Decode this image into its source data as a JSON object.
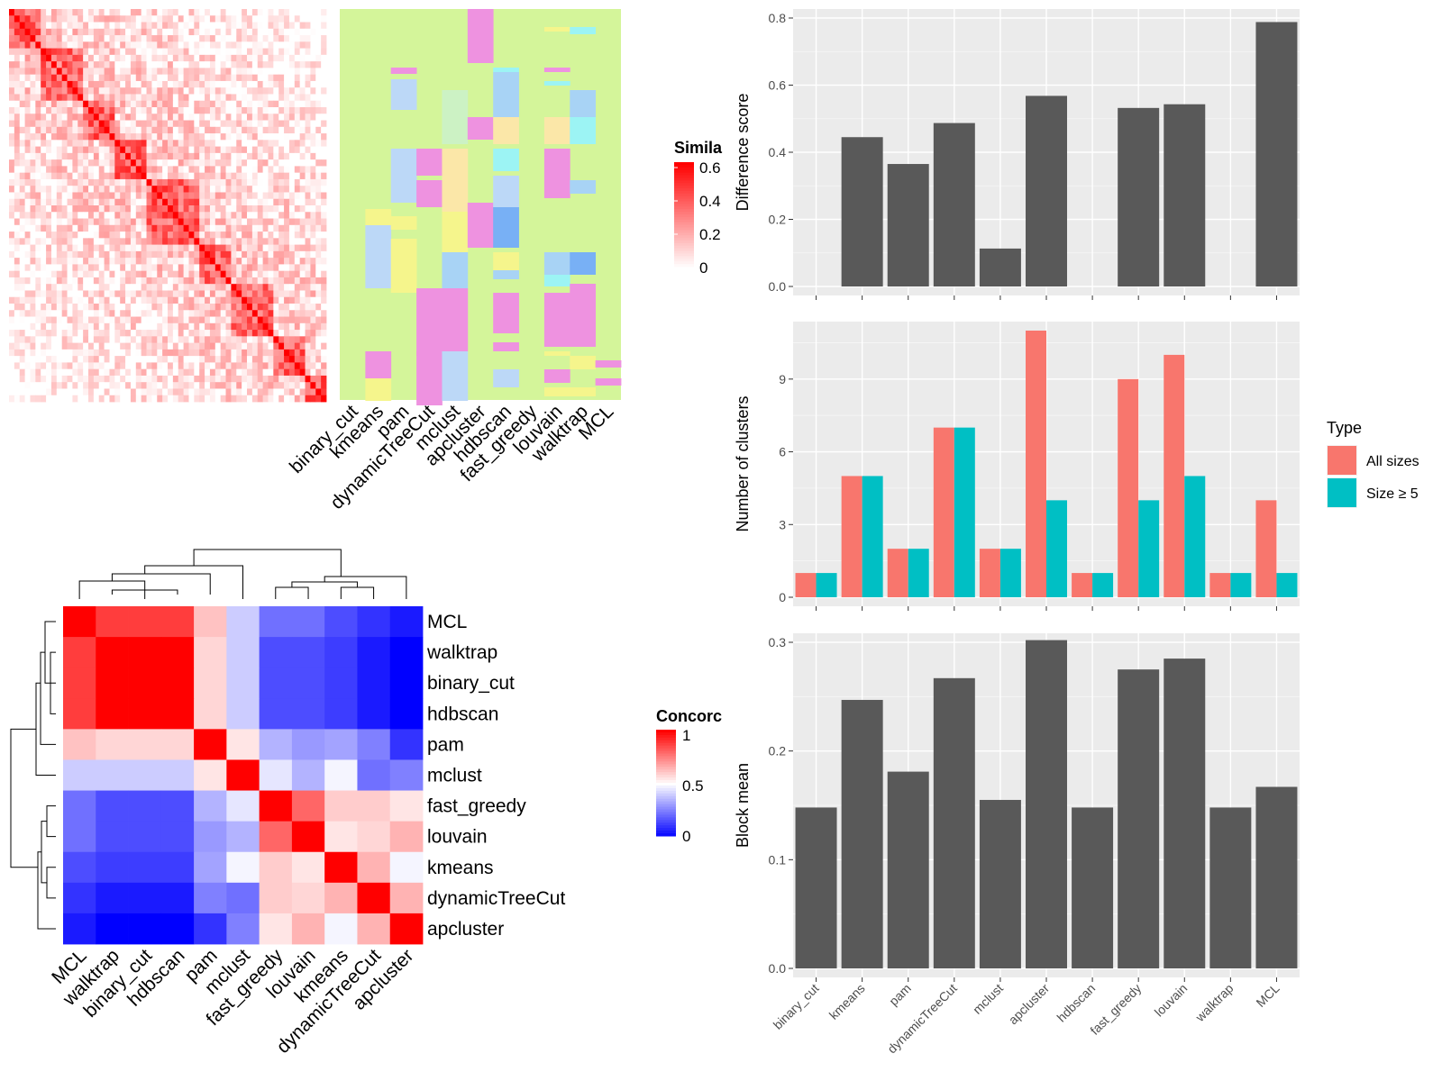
{
  "methods": [
    "binary_cut",
    "kmeans",
    "pam",
    "dynamicTreeCut",
    "mclust",
    "apcluster",
    "hdbscan",
    "fast_greedy",
    "louvain",
    "walktrap",
    "MCL"
  ],
  "colors": {
    "bar_dark": "#595959",
    "panel_bg": "#ebebeb",
    "grid": "#ffffff",
    "all_sizes": "#F8766D",
    "size_ge5": "#00BFC4",
    "heat_high": "#ff0000",
    "heat_mid": "#ffffff",
    "heat_low": "#0000ff",
    "class_bg": "#d4f59a"
  },
  "similarity_heatmap": {
    "legend_title": "Simila",
    "legend_ticks": [
      "0.6",
      "0.4",
      "0.2",
      "0"
    ],
    "n": 60
  },
  "class_heatmap": {
    "columns": [
      "binary_cut",
      "kmeans",
      "pam",
      "dynamicTreeCut",
      "mclust",
      "apcluster",
      "hdbscan",
      "fast_greedy",
      "louvain",
      "walktrap",
      "MCL"
    ]
  },
  "concordance_heatmap": {
    "legend_title": "Concorc",
    "legend_ticks": [
      "1",
      "0.5",
      "0"
    ],
    "order": [
      "MCL",
      "walktrap",
      "binary_cut",
      "hdbscan",
      "pam",
      "mclust",
      "fast_greedy",
      "louvain",
      "kmeans",
      "dynamicTreeCut",
      "apcluster"
    ],
    "matrix": [
      [
        1.0,
        0.88,
        0.88,
        0.88,
        0.62,
        0.4,
        0.22,
        0.22,
        0.15,
        0.1,
        0.05
      ],
      [
        0.88,
        1.0,
        1.0,
        1.0,
        0.58,
        0.4,
        0.15,
        0.15,
        0.12,
        0.05,
        0.0
      ],
      [
        0.88,
        1.0,
        1.0,
        1.0,
        0.58,
        0.4,
        0.15,
        0.15,
        0.12,
        0.05,
        0.0
      ],
      [
        0.88,
        1.0,
        1.0,
        1.0,
        0.58,
        0.4,
        0.15,
        0.15,
        0.12,
        0.05,
        0.0
      ],
      [
        0.62,
        0.58,
        0.58,
        0.58,
        1.0,
        0.55,
        0.35,
        0.3,
        0.32,
        0.25,
        0.1
      ],
      [
        0.4,
        0.4,
        0.4,
        0.4,
        0.55,
        1.0,
        0.45,
        0.35,
        0.48,
        0.22,
        0.25
      ],
      [
        0.22,
        0.15,
        0.15,
        0.15,
        0.35,
        0.45,
        1.0,
        0.8,
        0.6,
        0.6,
        0.55
      ],
      [
        0.22,
        0.15,
        0.15,
        0.15,
        0.3,
        0.35,
        0.8,
        1.0,
        0.55,
        0.58,
        0.65
      ],
      [
        0.15,
        0.12,
        0.12,
        0.12,
        0.32,
        0.48,
        0.6,
        0.55,
        1.0,
        0.65,
        0.48
      ],
      [
        0.1,
        0.05,
        0.05,
        0.05,
        0.25,
        0.22,
        0.6,
        0.58,
        0.65,
        1.0,
        0.65
      ],
      [
        0.05,
        0.0,
        0.0,
        0.0,
        0.1,
        0.25,
        0.55,
        0.65,
        0.48,
        0.65,
        1.0
      ]
    ]
  },
  "chart_data": [
    {
      "type": "bar",
      "ylabel": "Difference score",
      "categories": [
        "binary_cut",
        "kmeans",
        "pam",
        "dynamicTreeCut",
        "mclust",
        "apcluster",
        "hdbscan",
        "fast_greedy",
        "louvain",
        "walktrap",
        "MCL"
      ],
      "values": [
        0,
        0.445,
        0.365,
        0.487,
        0.113,
        0.568,
        0,
        0.532,
        0.543,
        0,
        0.788
      ],
      "ylim": [
        0,
        0.8
      ],
      "yticks": [
        "0.0",
        "0.2",
        "0.4",
        "0.6",
        "0.8"
      ],
      "grid": true
    },
    {
      "type": "bar",
      "ylabel": "Number of clusters",
      "categories": [
        "binary_cut",
        "kmeans",
        "pam",
        "dynamicTreeCut",
        "mclust",
        "apcluster",
        "hdbscan",
        "fast_greedy",
        "louvain",
        "walktrap",
        "MCL"
      ],
      "series": [
        {
          "name": "All sizes",
          "values": [
            1,
            5,
            2,
            7,
            2,
            11,
            1,
            9,
            10,
            1,
            4
          ]
        },
        {
          "name": "Size ≥ 5",
          "values": [
            1,
            5,
            2,
            7,
            2,
            4,
            1,
            4,
            5,
            1,
            1
          ]
        }
      ],
      "ylim": [
        0,
        11
      ],
      "yticks": [
        "0",
        "3",
        "6",
        "9"
      ],
      "legend_title": "Type",
      "legend_position": "right",
      "grid": true
    },
    {
      "type": "bar",
      "ylabel": "Block mean",
      "categories": [
        "binary_cut",
        "kmeans",
        "pam",
        "dynamicTreeCut",
        "mclust",
        "apcluster",
        "hdbscan",
        "fast_greedy",
        "louvain",
        "walktrap",
        "MCL"
      ],
      "values": [
        0.148,
        0.247,
        0.181,
        0.267,
        0.155,
        0.302,
        0.148,
        0.275,
        0.285,
        0.148,
        0.167
      ],
      "ylim": [
        0,
        0.3
      ],
      "yticks": [
        "0.0",
        "0.1",
        "0.2",
        "0.3"
      ],
      "grid": true
    }
  ]
}
